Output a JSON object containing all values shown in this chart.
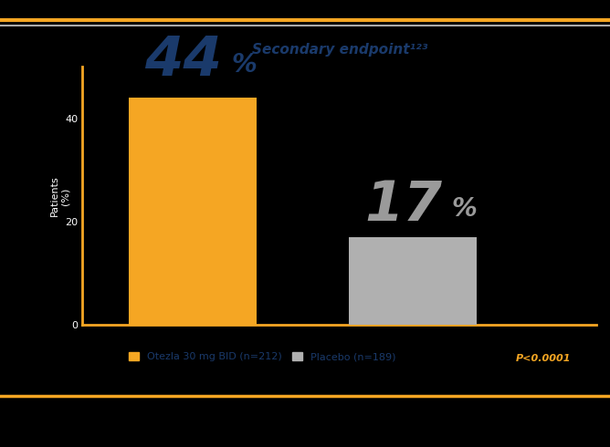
{
  "title": "Secondary endpoint¹²³",
  "bar_labels": [
    "Otezla 30 mg BID (n=212)",
    "Placebo (n=189)"
  ],
  "bar_values": [
    44,
    17
  ],
  "bar_annotation_labels": [
    "44%",
    "17%"
  ],
  "bar_colors": [
    "#F5A623",
    "#B0B0B0"
  ],
  "bar_annotation_colors": [
    "#1a3a6b",
    "#9A9A9A"
  ],
  "ylim": [
    0,
    50
  ],
  "yticks": [
    0,
    20,
    40
  ],
  "ylabel": "Patients\n(%)",
  "p_value_text": "P<0.0001",
  "background_color": "#000000",
  "plot_bg_color": "#000000",
  "title_color": "#1a3a6b",
  "axis_color": "#F5A623",
  "tick_color": "#FFFFFF",
  "ylabel_color": "#FFFFFF",
  "border_top_color_outer": "#F5A623",
  "border_top_color_inner": "#AAAAAA",
  "title_fontsize": 11,
  "annotation_fontsize_large": 44,
  "annotation_fontsize_small": 20,
  "legend_fontsize": 8,
  "ylabel_fontsize": 8,
  "p_value_color": "#F5A623",
  "legend_label_color": "#1a3a6b"
}
